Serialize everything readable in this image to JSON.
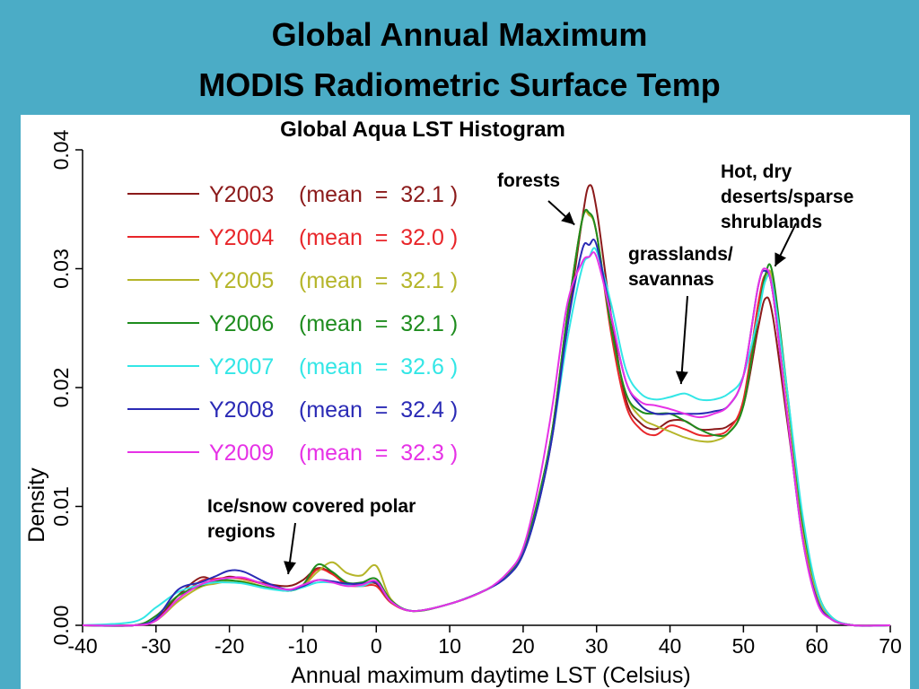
{
  "slide": {
    "title_line1": "Global Annual Maximum",
    "title_line2": "MODIS Radiometric Surface Temp",
    "background_color": "#4bacc6"
  },
  "chart_data": {
    "type": "line",
    "title": "Global Aqua LST Histogram",
    "xlabel": "Annual maximum daytime LST (Celsius)",
    "ylabel": "Density",
    "xlim": [
      -40,
      70
    ],
    "ylim": [
      0,
      0.04
    ],
    "x_ticks": [
      "-40",
      "-30",
      "-20",
      "-10",
      "0",
      "10",
      "20",
      "30",
      "40",
      "50",
      "60",
      "70"
    ],
    "y_ticks": [
      "0.00",
      "0.01",
      "0.02",
      "0.03",
      "0.04"
    ],
    "grid": false,
    "legend_placement": "top-left",
    "x": [
      -40,
      -33,
      -30,
      -27,
      -24,
      -22,
      -20,
      -18,
      -15,
      -12,
      -10,
      -8,
      -6,
      -4,
      -2,
      0,
      2,
      5,
      10,
      15,
      18,
      20,
      22,
      24,
      26,
      28,
      29,
      30,
      32,
      34,
      36,
      38,
      40,
      42,
      44,
      46,
      48,
      50,
      52,
      53,
      54,
      56,
      58,
      60,
      62,
      65,
      70
    ],
    "series": [
      {
        "name": "Y2003",
        "legend_label": "Y2003",
        "mean_text": "(mean  =  32.1 )",
        "color": "#8b1a1a",
        "values": [
          0.0,
          0.0,
          0.0005,
          0.0025,
          0.004,
          0.0038,
          0.0041,
          0.0039,
          0.0035,
          0.0033,
          0.0038,
          0.0048,
          0.0044,
          0.0035,
          0.0034,
          0.0035,
          0.002,
          0.0012,
          0.0018,
          0.003,
          0.0042,
          0.006,
          0.01,
          0.016,
          0.025,
          0.034,
          0.037,
          0.035,
          0.026,
          0.019,
          0.017,
          0.0165,
          0.0172,
          0.0172,
          0.0165,
          0.0165,
          0.0168,
          0.0185,
          0.025,
          0.0275,
          0.026,
          0.017,
          0.008,
          0.0025,
          0.0006,
          0.0,
          0.0
        ]
      },
      {
        "name": "Y2004",
        "legend_label": "Y2004",
        "mean_text": "(mean  =  32.0 )",
        "color": "#e8262a",
        "values": [
          0.0,
          0.0,
          0.0004,
          0.0022,
          0.0037,
          0.0039,
          0.004,
          0.0039,
          0.0034,
          0.003,
          0.0034,
          0.0047,
          0.0043,
          0.0034,
          0.0033,
          0.0033,
          0.0019,
          0.0012,
          0.0018,
          0.003,
          0.0043,
          0.0062,
          0.0105,
          0.0165,
          0.026,
          0.034,
          0.0345,
          0.033,
          0.0245,
          0.0185,
          0.0165,
          0.016,
          0.0168,
          0.0165,
          0.016,
          0.016,
          0.0165,
          0.019,
          0.027,
          0.0295,
          0.028,
          0.0175,
          0.008,
          0.0025,
          0.0006,
          0.0,
          0.0
        ]
      },
      {
        "name": "Y2005",
        "legend_label": "Y2005",
        "mean_text": "(mean  =  32.1 )",
        "color": "#b5b529",
        "values": [
          0.0,
          0.0,
          0.0004,
          0.002,
          0.0032,
          0.0035,
          0.0037,
          0.0037,
          0.0032,
          0.0029,
          0.0033,
          0.0045,
          0.0053,
          0.0044,
          0.0042,
          0.005,
          0.0022,
          0.0012,
          0.0018,
          0.003,
          0.0043,
          0.0062,
          0.0105,
          0.0165,
          0.026,
          0.034,
          0.0345,
          0.033,
          0.025,
          0.0195,
          0.0175,
          0.0168,
          0.0163,
          0.0158,
          0.0155,
          0.0155,
          0.0162,
          0.0185,
          0.026,
          0.029,
          0.029,
          0.019,
          0.0085,
          0.0025,
          0.0006,
          0.0,
          0.0
        ]
      },
      {
        "name": "Y2006",
        "legend_label": "Y2006",
        "mean_text": "(mean  =  32.1 )",
        "color": "#1e8c1e",
        "values": [
          0.0,
          0.0,
          0.0008,
          0.0025,
          0.0033,
          0.0037,
          0.0038,
          0.0036,
          0.0032,
          0.0029,
          0.0034,
          0.0051,
          0.0045,
          0.0036,
          0.0036,
          0.0039,
          0.0021,
          0.0012,
          0.0018,
          0.003,
          0.0043,
          0.0062,
          0.0105,
          0.0165,
          0.026,
          0.034,
          0.0347,
          0.033,
          0.025,
          0.0195,
          0.018,
          0.0178,
          0.0178,
          0.0172,
          0.0165,
          0.016,
          0.0162,
          0.0185,
          0.026,
          0.0295,
          0.0295,
          0.0195,
          0.009,
          0.003,
          0.0007,
          0.0,
          0.0
        ]
      },
      {
        "name": "Y2007",
        "legend_label": "Y2007",
        "mean_text": "(mean  =  32.6 )",
        "color": "#33e6e6",
        "values": [
          0.0,
          0.0003,
          0.0015,
          0.0028,
          0.0034,
          0.0036,
          0.0036,
          0.0035,
          0.0031,
          0.0029,
          0.0032,
          0.0036,
          0.0036,
          0.0034,
          0.0033,
          0.0036,
          0.002,
          0.0012,
          0.0018,
          0.003,
          0.0042,
          0.006,
          0.01,
          0.016,
          0.024,
          0.03,
          0.031,
          0.0315,
          0.027,
          0.0215,
          0.0195,
          0.019,
          0.0192,
          0.0195,
          0.019,
          0.019,
          0.0195,
          0.021,
          0.026,
          0.029,
          0.0285,
          0.0195,
          0.0095,
          0.003,
          0.0007,
          0.0,
          0.0
        ]
      },
      {
        "name": "Y2008",
        "legend_label": "Y2008",
        "mean_text": "(mean  =  32.4 )",
        "color": "#2a2ab5",
        "values": [
          0.0,
          0.0,
          0.0006,
          0.003,
          0.0036,
          0.0041,
          0.0046,
          0.0045,
          0.0036,
          0.003,
          0.0033,
          0.0038,
          0.0037,
          0.0035,
          0.0035,
          0.0036,
          0.002,
          0.0012,
          0.0018,
          0.003,
          0.0042,
          0.006,
          0.01,
          0.016,
          0.025,
          0.0315,
          0.032,
          0.032,
          0.026,
          0.0205,
          0.0185,
          0.0178,
          0.0178,
          0.0178,
          0.0178,
          0.018,
          0.0185,
          0.021,
          0.0285,
          0.0298,
          0.028,
          0.0175,
          0.0075,
          0.0022,
          0.0005,
          0.0,
          0.0
        ]
      },
      {
        "name": "Y2009",
        "legend_label": "Y2009",
        "mean_text": "(mean  =  32.3 )",
        "color": "#e632e6",
        "values": [
          0.0,
          0.0,
          0.0004,
          0.0022,
          0.0034,
          0.0038,
          0.004,
          0.004,
          0.0034,
          0.003,
          0.0034,
          0.0038,
          0.0036,
          0.0033,
          0.0034,
          0.0037,
          0.002,
          0.0012,
          0.0018,
          0.003,
          0.0045,
          0.0065,
          0.0115,
          0.0185,
          0.027,
          0.0305,
          0.031,
          0.031,
          0.026,
          0.0205,
          0.0188,
          0.0185,
          0.0182,
          0.0178,
          0.0175,
          0.0178,
          0.0185,
          0.021,
          0.0285,
          0.03,
          0.028,
          0.0175,
          0.0075,
          0.002,
          0.0005,
          0.0,
          0.0
        ]
      }
    ],
    "annotations": [
      {
        "lines": [
          "forests"
        ],
        "arrow_to": [
          27,
          0.0337
        ]
      },
      {
        "lines": [
          "Hot, dry",
          "deserts/sparse",
          "shrublands"
        ],
        "arrow_to": [
          54.3,
          0.0302
        ]
      },
      {
        "lines": [
          "grasslands/",
          "savannas"
        ],
        "arrow_to": [
          41.5,
          0.0203
        ]
      },
      {
        "lines": [
          "Ice/snow covered polar",
          "regions"
        ],
        "arrow_to": [
          -12,
          0.0043
        ]
      }
    ]
  }
}
